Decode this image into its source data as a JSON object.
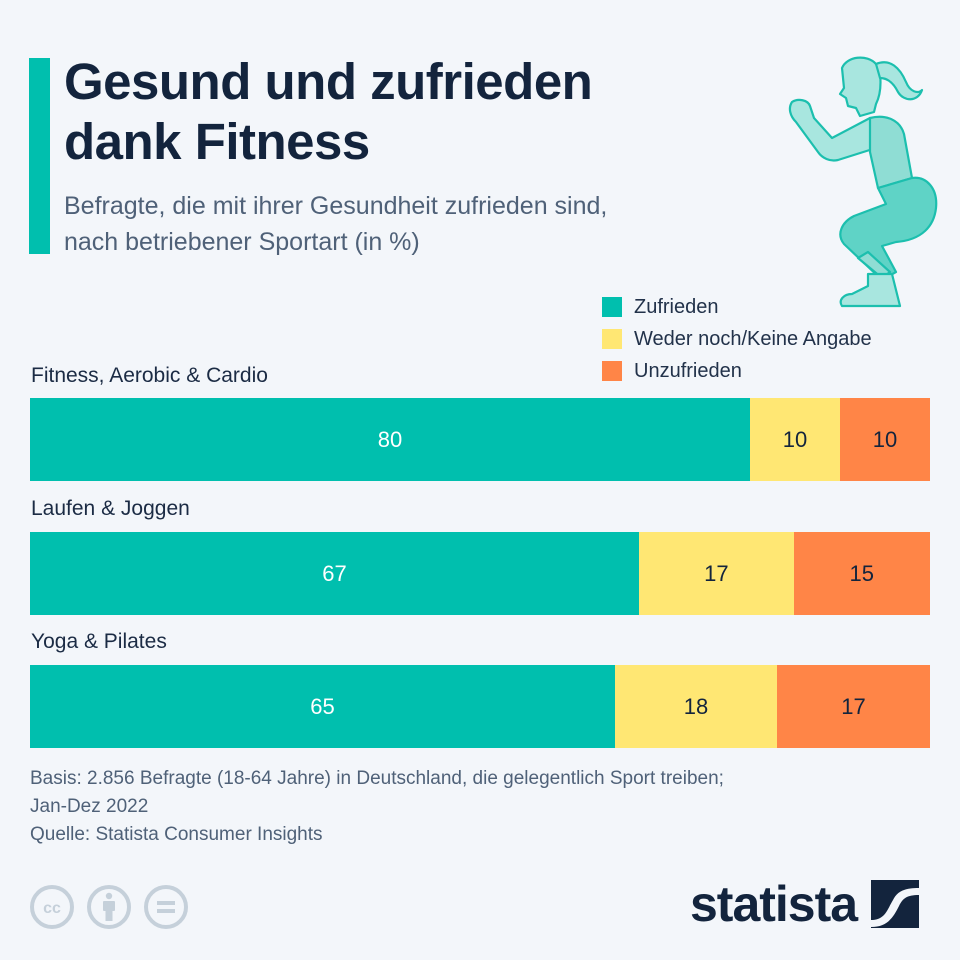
{
  "header": {
    "title_lines": [
      "Gesund und zufrieden",
      "dank Fitness"
    ],
    "subtitle_lines": [
      "Befragte, die mit ihrer Gesundheit zufrieden sind,",
      "nach betriebener Sportart (in %)"
    ],
    "illustration": "woman-squatting-icon"
  },
  "colors": {
    "accent": "#00bfae",
    "zufrieden": "#00bfae",
    "weder": "#ffe773",
    "unzufrieden": "#ff8547",
    "text_dark": "#13243d"
  },
  "chart_data": {
    "type": "bar",
    "orientation": "horizontal",
    "stacked": true,
    "title": "Gesund und zufrieden dank Fitness",
    "subtitle": "Befragte, die mit ihrer Gesundheit zufrieden sind, nach betriebener Sportart (in %)",
    "xlabel": "",
    "ylabel": "",
    "unit": "%",
    "categories": [
      "Fitness, Aerobic & Cardio",
      "Laufen & Joggen",
      "Yoga & Pilates"
    ],
    "series": [
      {
        "name": "Zufrieden",
        "color": "#00bfae",
        "label_color": "#ffffff",
        "values": [
          80,
          67,
          65
        ]
      },
      {
        "name": "Weder noch/Keine Angabe",
        "color": "#ffe773",
        "label_color": "#13243d",
        "values": [
          10,
          17,
          18
        ]
      },
      {
        "name": "Unzufrieden",
        "color": "#ff8547",
        "label_color": "#13243d",
        "values": [
          10,
          15,
          17
        ]
      }
    ],
    "legend_position": "top-right",
    "grid": false,
    "data_labels": true
  },
  "footer": {
    "notes": [
      "Basis: 2.856 Befragte (18-64 Jahre) in Deutschland, die gelegentlich Sport treiben;",
      "Jan-Dez 2022",
      "Quelle: Statista Consumer Insights"
    ],
    "license_icons": [
      "cc-icon",
      "attribution-icon",
      "no-derivatives-icon"
    ],
    "brand": "statista"
  }
}
